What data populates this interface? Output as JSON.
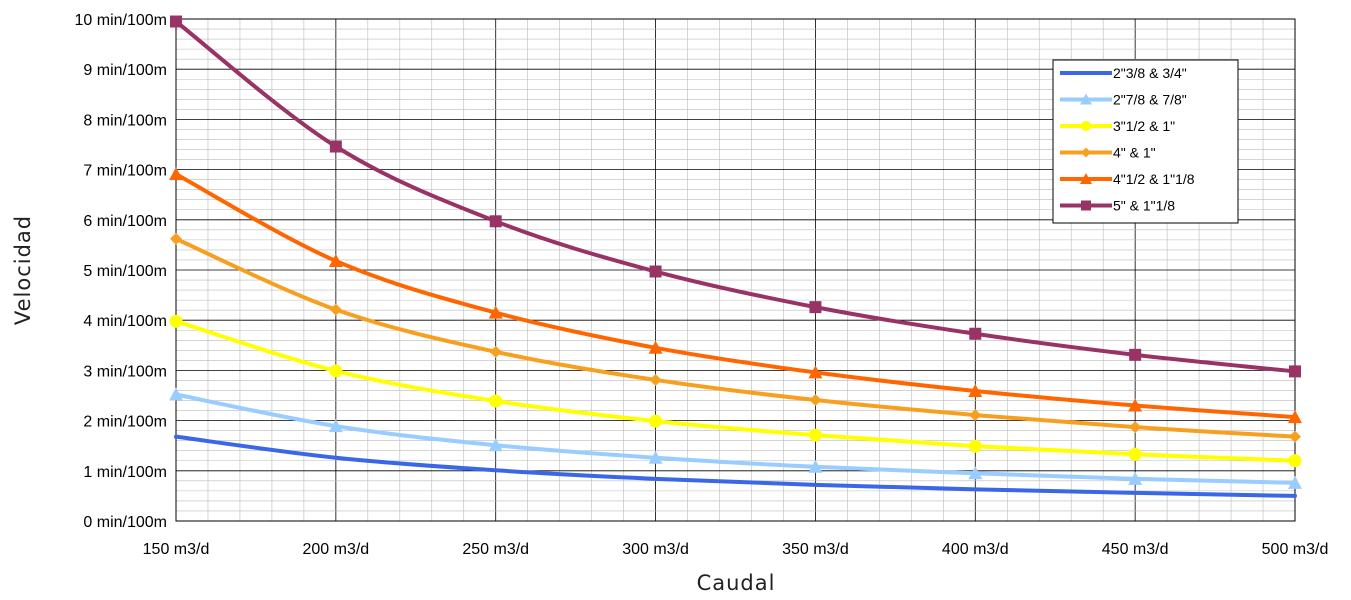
{
  "chart_data": {
    "type": "line",
    "title": "",
    "xlabel": "Caudal",
    "ylabel": "Velocidad",
    "x": [
      150,
      200,
      250,
      300,
      350,
      400,
      450,
      500
    ],
    "x_tick_labels": [
      "150 m3/d",
      "200 m3/d",
      "250 m3/d",
      "300 m3/d",
      "350 m3/d",
      "400 m3/d",
      "450 m3/d",
      "500 m3/d"
    ],
    "y_tick_labels": [
      "0 min/100m",
      "1 min/100m",
      "2 min/100m",
      "3 min/100m",
      "4 min/100m",
      "5 min/100m",
      "6 min/100m",
      "7 min/100m",
      "8 min/100m",
      "9 min/100m",
      "10 min/100m"
    ],
    "xlim": [
      150,
      500
    ],
    "ylim": [
      0,
      10
    ],
    "grid": true,
    "minor_grid": true,
    "legend_position": "top-right",
    "series": [
      {
        "name": "2\"3/8 & 3/4\"",
        "color": "#3a66e8",
        "marker": "none",
        "values": [
          1.68,
          1.26,
          1.01,
          0.84,
          0.72,
          0.63,
          0.56,
          0.5
        ]
      },
      {
        "name": "2\"7/8 & 7/8\"",
        "color": "#99ccff",
        "marker": "triangle",
        "values": [
          2.52,
          1.89,
          1.51,
          1.26,
          1.08,
          0.95,
          0.84,
          0.76
        ]
      },
      {
        "name": "3\"1/2 & 1\"",
        "color": "#ffff00",
        "marker": "circle",
        "values": [
          3.98,
          2.99,
          2.39,
          1.99,
          1.71,
          1.49,
          1.33,
          1.2
        ]
      },
      {
        "name": "4\" & 1\"",
        "color": "#f7a020",
        "marker": "diamond",
        "values": [
          5.62,
          4.21,
          3.37,
          2.81,
          2.41,
          2.11,
          1.87,
          1.68
        ]
      },
      {
        "name": "4\"1/2 & 1\"1/8",
        "color": "#ff6600",
        "marker": "triangle",
        "values": [
          6.91,
          5.18,
          4.15,
          3.45,
          2.96,
          2.59,
          2.3,
          2.07
        ]
      },
      {
        "name": "5\" & 1\"1/8",
        "color": "#993366",
        "marker": "square",
        "values": [
          9.95,
          7.46,
          5.97,
          4.97,
          4.26,
          3.73,
          3.31,
          2.98
        ]
      }
    ]
  }
}
